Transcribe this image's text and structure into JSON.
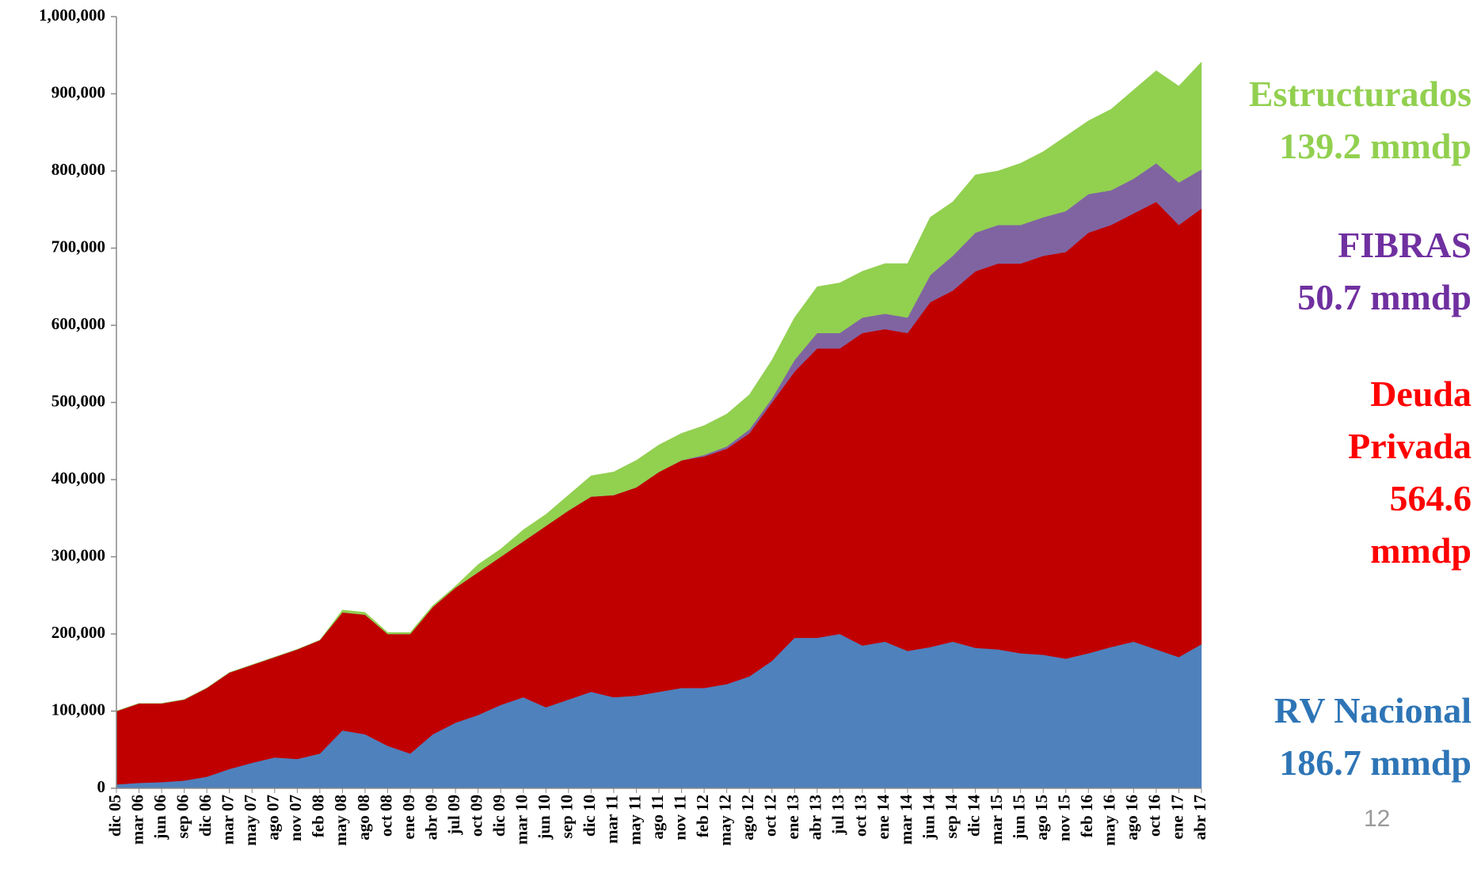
{
  "chart_data": {
    "type": "stacked_area",
    "categories": [
      "dic 05",
      "mar 06",
      "jun 06",
      "sep 06",
      "dic 06",
      "mar 07",
      "may 07",
      "ago 07",
      "nov 07",
      "feb 08",
      "may 08",
      "ago 08",
      "oct 08",
      "ene 09",
      "abr 09",
      "jul 09",
      "oct 09",
      "dic 09",
      "mar 10",
      "jun 10",
      "sep 10",
      "dic 10",
      "mar 11",
      "may 11",
      "ago 11",
      "nov 11",
      "feb 12",
      "may 12",
      "ago 12",
      "oct 12",
      "ene 13",
      "abr 13",
      "jul 13",
      "oct 13",
      "ene 14",
      "mar 14",
      "jun 14",
      "sep 14",
      "dic 14",
      "mar 15",
      "jun 15",
      "ago 15",
      "nov 15",
      "feb 16",
      "may 16",
      "ago 16",
      "oct 16",
      "ene 17",
      "abr 17"
    ],
    "series": [
      {
        "name": "RV Nacional",
        "annotation": "186.7 mmdp",
        "color": "#4f81bd",
        "label_color": "#2e75b6",
        "values": [
          5000,
          7000,
          8000,
          10000,
          15000,
          25000,
          33000,
          40000,
          38000,
          45000,
          75000,
          70000,
          55000,
          45000,
          70000,
          85000,
          95000,
          108000,
          118000,
          105000,
          115000,
          125000,
          118000,
          120000,
          125000,
          130000,
          130000,
          135000,
          145000,
          165000,
          195000,
          195000,
          200000,
          185000,
          190000,
          178000,
          183000,
          190000,
          182000,
          180000,
          175000,
          173000,
          168000,
          175000,
          183000,
          190000,
          180000,
          170000,
          186700
        ]
      },
      {
        "name": "Deuda Privada",
        "annotation": "564.6 mmdp",
        "color": "#c00000",
        "label_color": "#ff0000",
        "values": [
          95000,
          103000,
          102000,
          105000,
          115000,
          125000,
          127000,
          130000,
          142000,
          147000,
          153000,
          155000,
          145000,
          155000,
          165000,
          175000,
          185000,
          192000,
          202000,
          235000,
          245000,
          253000,
          262000,
          270000,
          285000,
          295000,
          300000,
          305000,
          315000,
          335000,
          345000,
          375000,
          370000,
          405000,
          405000,
          412000,
          447000,
          455000,
          488000,
          500000,
          505000,
          517000,
          527000,
          545000,
          547000,
          555000,
          580000,
          560000,
          564600
        ]
      },
      {
        "name": "FIBRAS",
        "annotation": "50.7 mmdp",
        "color": "#8064a2",
        "label_color": "#7030a0",
        "values": [
          0,
          0,
          0,
          0,
          0,
          0,
          0,
          0,
          0,
          0,
          0,
          0,
          0,
          0,
          0,
          0,
          0,
          0,
          0,
          0,
          0,
          0,
          0,
          0,
          0,
          0,
          2000,
          3000,
          5000,
          5000,
          15000,
          20000,
          20000,
          20000,
          20000,
          20000,
          35000,
          45000,
          50000,
          50000,
          50000,
          50000,
          53000,
          50000,
          45000,
          45000,
          50000,
          55000,
          50700
        ]
      },
      {
        "name": "Estructurados",
        "annotation": "139.2  mmdp",
        "color": "#92d050",
        "label_color": "#92d050",
        "values": [
          0,
          0,
          0,
          0,
          0,
          0,
          0,
          0,
          0,
          0,
          3000,
          3000,
          2000,
          2000,
          2000,
          2000,
          10000,
          10000,
          15000,
          15000,
          20000,
          27000,
          30000,
          35000,
          35000,
          35000,
          38000,
          42000,
          45000,
          50000,
          55000,
          60000,
          65000,
          60000,
          65000,
          70000,
          75000,
          70000,
          75000,
          70000,
          80000,
          85000,
          97000,
          95000,
          105000,
          115000,
          120000,
          125000,
          139200
        ]
      }
    ],
    "ylim": [
      0,
      1000000
    ],
    "yticks": [
      0,
      {
        "value": 100000,
        "label": "100,000"
      },
      {
        "value": 200000,
        "label": "200,000"
      },
      {
        "value": 300000,
        "label": "300,000"
      },
      {
        "value": 400000,
        "label": "400,000"
      },
      {
        "value": 500000,
        "label": "500,000"
      },
      {
        "value": 600000,
        "label": "600,000"
      },
      {
        "value": 700000,
        "label": "700,000"
      },
      {
        "value": 800000,
        "label": "800,000"
      },
      {
        "value": 900000,
        "label": "900,000"
      },
      {
        "value": 1000000,
        "label": "1,000,000"
      }
    ],
    "page_number": "12"
  }
}
